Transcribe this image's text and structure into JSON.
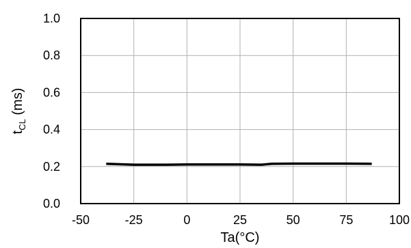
{
  "chart_data": {
    "type": "line",
    "xlabel": "Ta(°C)",
    "ylabel_main": "t",
    "ylabel_sub": "CL",
    "ylabel_unit": " (ms)",
    "xlim": [
      -50,
      100
    ],
    "ylim": [
      0.0,
      1.0
    ],
    "xticks": [
      -50,
      -25,
      0,
      25,
      50,
      75,
      100
    ],
    "xtick_labels": [
      "-50",
      "-25",
      "0",
      "25",
      "50",
      "75",
      "100"
    ],
    "yticks": [
      0.0,
      0.2,
      0.4,
      0.6,
      0.8,
      1.0
    ],
    "ytick_labels": [
      "0.0",
      "0.2",
      "0.4",
      "0.6",
      "0.8",
      "1.0"
    ],
    "grid": true,
    "series": [
      {
        "color": "#000000",
        "x": [
          -38,
          -25,
          -10,
          0,
          10,
          25,
          35,
          40,
          50,
          60,
          75,
          87
        ],
        "y": [
          0.215,
          0.21,
          0.21,
          0.211,
          0.211,
          0.211,
          0.21,
          0.215,
          0.216,
          0.216,
          0.216,
          0.215
        ]
      }
    ]
  }
}
